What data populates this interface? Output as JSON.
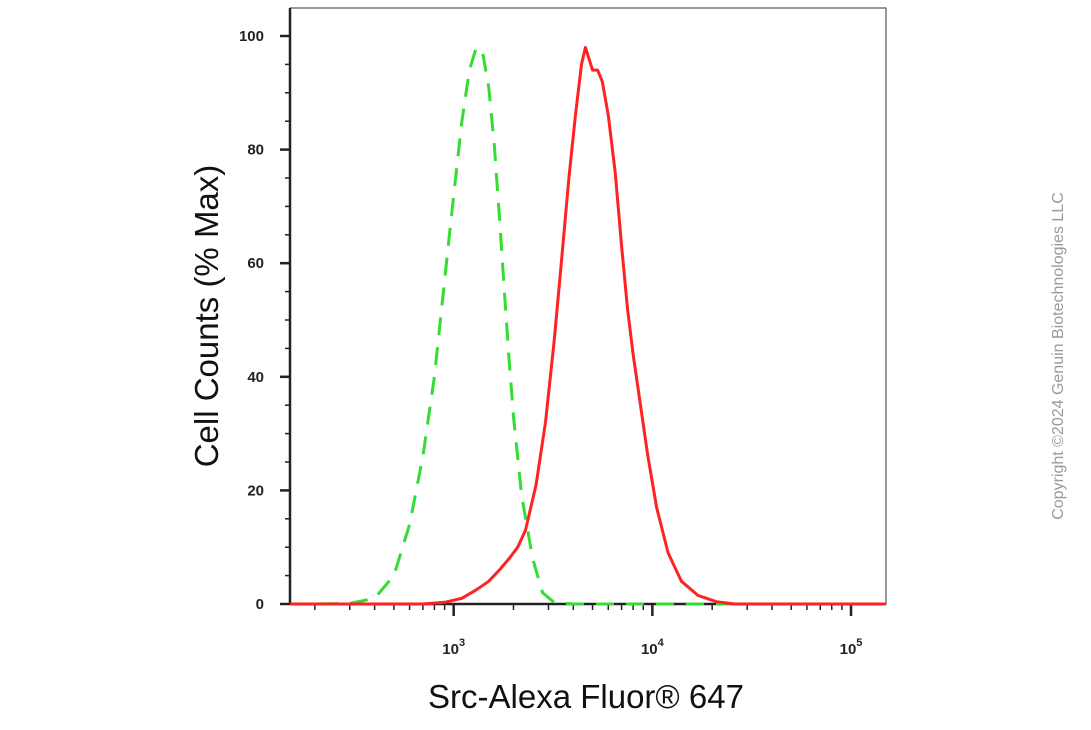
{
  "chart_data": {
    "type": "line",
    "title": "",
    "xlabel": "Src-Alexa Fluor® 647",
    "ylabel": "Cell Counts (% Max)",
    "x_scale": "log",
    "xlim": [
      150,
      150000
    ],
    "ylim": [
      0,
      105
    ],
    "y_ticks": [
      "0",
      "20",
      "40",
      "60",
      "80",
      "100"
    ],
    "x_ticks": [
      {
        "value": 1000,
        "base": "10",
        "exp": "3"
      },
      {
        "value": 10000,
        "base": "10",
        "exp": "4"
      },
      {
        "value": 100000,
        "base": "10",
        "exp": "5"
      }
    ],
    "grid": false,
    "legend": "none",
    "series": [
      {
        "color": "#33dd33",
        "style": "dashed",
        "points": [
          [
            150,
            0
          ],
          [
            200,
            0
          ],
          [
            300,
            0.1
          ],
          [
            400,
            1
          ],
          [
            500,
            5
          ],
          [
            600,
            14
          ],
          [
            700,
            26
          ],
          [
            800,
            40
          ],
          [
            900,
            57
          ],
          [
            1000,
            72
          ],
          [
            1100,
            85
          ],
          [
            1200,
            94
          ],
          [
            1300,
            98
          ],
          [
            1400,
            97
          ],
          [
            1500,
            91
          ],
          [
            1600,
            81
          ],
          [
            1700,
            68
          ],
          [
            1800,
            55
          ],
          [
            1900,
            43
          ],
          [
            2000,
            33
          ],
          [
            2200,
            19
          ],
          [
            2500,
            8
          ],
          [
            2800,
            2
          ],
          [
            3200,
            0.3
          ],
          [
            4000,
            0
          ],
          [
            150000,
            0
          ]
        ]
      },
      {
        "color": "#ff2222",
        "style": "solid",
        "points": [
          [
            150,
            0
          ],
          [
            700,
            0
          ],
          [
            900,
            0.3
          ],
          [
            1100,
            1
          ],
          [
            1300,
            2.5
          ],
          [
            1500,
            4
          ],
          [
            1700,
            6
          ],
          [
            1900,
            8
          ],
          [
            2100,
            10
          ],
          [
            2300,
            13
          ],
          [
            2600,
            21
          ],
          [
            2900,
            32
          ],
          [
            3200,
            46
          ],
          [
            3500,
            61
          ],
          [
            3800,
            75
          ],
          [
            4100,
            86
          ],
          [
            4400,
            95
          ],
          [
            4600,
            98
          ],
          [
            4800,
            96
          ],
          [
            5000,
            94
          ],
          [
            5300,
            94
          ],
          [
            5600,
            92
          ],
          [
            6000,
            86
          ],
          [
            6500,
            76
          ],
          [
            7000,
            63
          ],
          [
            7500,
            52
          ],
          [
            8000,
            44
          ],
          [
            8800,
            34
          ],
          [
            9500,
            26
          ],
          [
            10500,
            17
          ],
          [
            12000,
            9
          ],
          [
            14000,
            4
          ],
          [
            17000,
            1.5
          ],
          [
            21000,
            0.4
          ],
          [
            26000,
            0
          ],
          [
            150000,
            0
          ]
        ]
      }
    ]
  },
  "watermark": "Copyright ©2024 Genuin Biotechnologies LLC"
}
